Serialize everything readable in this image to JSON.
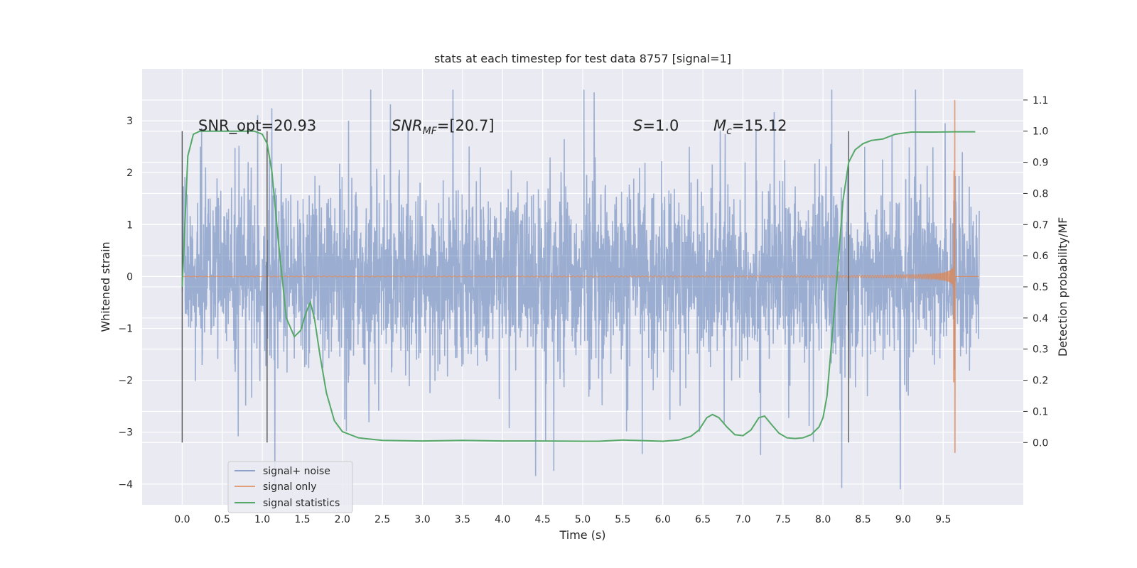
{
  "chart_data": {
    "type": "line",
    "title": "stats at each timestep for test data 8757 [signal=1]",
    "xlabel": "Time (s)",
    "ylabel": "Whitened strain",
    "ylabel_right": "Detection probability/MF",
    "xlim": [
      -0.5,
      10.5
    ],
    "ylim": [
      -4.4,
      4.0
    ],
    "ylim_right": [
      -0.2,
      1.2
    ],
    "x_ticks": [
      0.0,
      0.5,
      1.0,
      1.5,
      2.0,
      2.5,
      3.0,
      3.5,
      4.0,
      4.5,
      5.0,
      5.5,
      6.0,
      6.5,
      7.0,
      7.5,
      8.0,
      8.5,
      9.0,
      9.5
    ],
    "x_tick_labels": [
      "0.0",
      "0.5",
      "1.0",
      "1.5",
      "2.0",
      "2.5",
      "3.0",
      "3.5",
      "4.0",
      "4.5",
      "5.0",
      "5.5",
      "6.0",
      "6.5",
      "7.0",
      "7.5",
      "8.0",
      "8.5",
      "9.0",
      "9.5"
    ],
    "y_ticks": [
      -4,
      -3,
      -2,
      -1,
      0,
      1,
      2,
      3
    ],
    "y_tick_labels": [
      "−4",
      "−3",
      "−2",
      "−1",
      "0",
      "1",
      "2",
      "3"
    ],
    "y_ticks_right": [
      0.0,
      0.1,
      0.2,
      0.3,
      0.4,
      0.5,
      0.6,
      0.7,
      0.8,
      0.9,
      1.0,
      1.1
    ],
    "y_tick_labels_right": [
      "0.0",
      "0.1",
      "0.2",
      "0.3",
      "0.4",
      "0.5",
      "0.6",
      "0.7",
      "0.8",
      "0.9",
      "1.0",
      "1.1"
    ],
    "grid": true,
    "legend_position": "lower-left",
    "series": [
      {
        "name": "signal+ noise",
        "color": "#4c72b0",
        "style": "noisy strain, values within approx -4.1 to 3.6"
      },
      {
        "name": "signal only",
        "color": "#dd8452",
        "chirp_merger_time": 9.65,
        "chirp_peak": 3.4
      },
      {
        "name": "signal statistics",
        "color": "#55a868",
        "axis": "right",
        "x": [
          0.0,
          0.07,
          0.14,
          0.22,
          0.3,
          0.5,
          0.7,
          0.9,
          1.0,
          1.06,
          1.12,
          1.2,
          1.3,
          1.4,
          1.48,
          1.55,
          1.6,
          1.65,
          1.72,
          1.8,
          1.9,
          2.0,
          2.2,
          2.5,
          3.0,
          3.5,
          4.0,
          4.5,
          5.0,
          5.2,
          5.5,
          6.0,
          6.2,
          6.35,
          6.45,
          6.55,
          6.62,
          6.7,
          6.8,
          6.9,
          7.0,
          7.1,
          7.2,
          7.27,
          7.35,
          7.45,
          7.55,
          7.65,
          7.75,
          7.85,
          7.95,
          8.0,
          8.05,
          8.15,
          8.25,
          8.32,
          8.4,
          8.5,
          8.6,
          8.75,
          8.9,
          9.1,
          9.4,
          9.65,
          9.9
        ],
        "values": [
          0.5,
          0.92,
          0.99,
          1.0,
          1.0,
          1.0,
          1.0,
          1.0,
          0.99,
          0.96,
          0.87,
          0.65,
          0.4,
          0.34,
          0.36,
          0.42,
          0.45,
          0.4,
          0.28,
          0.16,
          0.07,
          0.035,
          0.015,
          0.007,
          0.005,
          0.007,
          0.005,
          0.005,
          0.004,
          0.004,
          0.008,
          0.004,
          0.008,
          0.02,
          0.04,
          0.08,
          0.09,
          0.08,
          0.05,
          0.025,
          0.022,
          0.04,
          0.08,
          0.085,
          0.06,
          0.03,
          0.015,
          0.013,
          0.015,
          0.025,
          0.05,
          0.08,
          0.15,
          0.45,
          0.78,
          0.9,
          0.94,
          0.96,
          0.97,
          0.975,
          0.99,
          0.997,
          0.997,
          0.998,
          0.998
        ]
      }
    ],
    "vertical_lines": {
      "x": [
        0.0,
        1.06,
        8.32
      ],
      "y_range": [
        -3.2,
        2.8
      ],
      "color": "#555555"
    },
    "annotations": {
      "snr_opt": "SNR_opt=20.93",
      "snr_mf_base": "SNR",
      "snr_mf_sub": "MF",
      "snr_mf_value": "=[20.7]",
      "s_base": "S",
      "s_value": "=1.0",
      "mc_base": "M",
      "mc_sub": "c",
      "mc_value": "=15.12"
    },
    "colors": {
      "background": "#eaeaf2",
      "grid": "#ffffff"
    }
  }
}
